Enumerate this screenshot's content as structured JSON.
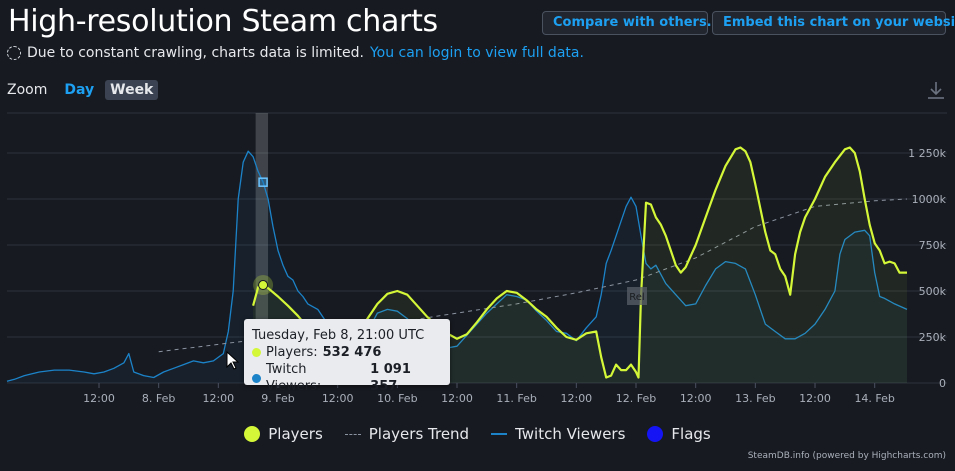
{
  "header": {
    "title": "High-resolution Steam charts",
    "compare_label": "Compare with others...",
    "embed_label": "Embed this chart on your website"
  },
  "notice": {
    "text": "Due to constant crawling, charts data is limited.",
    "link": "You can login to view full data."
  },
  "zoom": {
    "label": "Zoom",
    "options": [
      "Day",
      "Week"
    ],
    "selected": "Week"
  },
  "icons": {
    "download": "download-icon",
    "loading": "loading-spinner-icon"
  },
  "tooltip": {
    "date": "Tuesday, Feb 8, 21:00 UTC",
    "players_label": "Players:",
    "players_value": "532 476",
    "twitch_label": "Twitch Viewers:",
    "twitch_value": "1 091 357"
  },
  "legend": {
    "players": "Players",
    "trend": "Players Trend",
    "twitch": "Twitch Viewers",
    "flags": "Flags"
  },
  "flag_label": "Rel",
  "credits": "SteamDB.info (powered by Highcharts.com)",
  "colors": {
    "players": "#d4f738",
    "twitch": "#1c83c9",
    "trend": "#8b93a0",
    "flags": "#1414f5",
    "background": "#171a21"
  },
  "chart_data": {
    "type": "line",
    "x_unit": "hours from Feb 7 00:00 UTC",
    "x_range": [
      -6.5,
      174.7
    ],
    "ylim": [
      0,
      1250000
    ],
    "y_ticks": [
      {
        "value": 0,
        "label": "0"
      },
      {
        "value": 250000,
        "label": "250k"
      },
      {
        "value": 500000,
        "label": "500k"
      },
      {
        "value": 750000,
        "label": "750k"
      },
      {
        "value": 1000000,
        "label": "1000k"
      },
      {
        "value": 1250000,
        "label": "1 250k"
      }
    ],
    "x_ticks": [
      {
        "x": 12,
        "label": "12:00"
      },
      {
        "x": 24,
        "label": "8. Feb"
      },
      {
        "x": 36,
        "label": "12:00"
      },
      {
        "x": 48,
        "label": "9. Feb"
      },
      {
        "x": 60,
        "label": "12:00"
      },
      {
        "x": 72,
        "label": "10. Feb"
      },
      {
        "x": 84,
        "label": "12:00"
      },
      {
        "x": 96,
        "label": "11. Feb"
      },
      {
        "x": 108,
        "label": "12:00"
      },
      {
        "x": 120,
        "label": "12. Feb"
      },
      {
        "x": 132,
        "label": "12:00"
      },
      {
        "x": 144,
        "label": "13. Feb"
      },
      {
        "x": 156,
        "label": "12:00"
      },
      {
        "x": 168,
        "label": "14. Feb"
      }
    ],
    "highlight_range": [
      43.5,
      46
    ],
    "hover_x": 45,
    "flags": [
      {
        "x": 120,
        "label": "Rel"
      }
    ],
    "series": [
      {
        "name": "Players",
        "points": [
          [
            43,
            420000
          ],
          [
            44,
            520000
          ],
          [
            45,
            532476
          ],
          [
            46,
            515000
          ],
          [
            48,
            470000
          ],
          [
            50,
            420000
          ],
          [
            52,
            365000
          ],
          [
            54,
            300000
          ],
          [
            56,
            235000
          ],
          [
            58,
            185000
          ],
          [
            60,
            150000
          ],
          [
            61,
            160000
          ],
          [
            62,
            200000
          ],
          [
            64,
            270000
          ],
          [
            66,
            350000
          ],
          [
            68,
            430000
          ],
          [
            70,
            485000
          ],
          [
            72,
            500000
          ],
          [
            74,
            480000
          ],
          [
            76,
            420000
          ],
          [
            78,
            360000
          ],
          [
            80,
            310000
          ],
          [
            82,
            270000
          ],
          [
            84,
            240000
          ],
          [
            86,
            265000
          ],
          [
            88,
            330000
          ],
          [
            90,
            400000
          ],
          [
            92,
            460000
          ],
          [
            94,
            500000
          ],
          [
            96,
            490000
          ],
          [
            98,
            450000
          ],
          [
            100,
            400000
          ],
          [
            102,
            360000
          ],
          [
            104,
            300000
          ],
          [
            106,
            250000
          ],
          [
            108,
            235000
          ],
          [
            110,
            270000
          ],
          [
            112,
            280000
          ],
          [
            113,
            140000
          ],
          [
            114,
            30000
          ],
          [
            115,
            40000
          ],
          [
            116,
            100000
          ],
          [
            117,
            70000
          ],
          [
            118,
            70000
          ],
          [
            119,
            100000
          ],
          [
            120,
            60000
          ],
          [
            120.5,
            30000
          ],
          [
            121,
            470000
          ],
          [
            122,
            980000
          ],
          [
            123,
            970000
          ],
          [
            124,
            900000
          ],
          [
            125,
            860000
          ],
          [
            126,
            800000
          ],
          [
            127,
            720000
          ],
          [
            128,
            640000
          ],
          [
            129,
            600000
          ],
          [
            130,
            630000
          ],
          [
            131,
            690000
          ],
          [
            132,
            750000
          ],
          [
            134,
            900000
          ],
          [
            136,
            1050000
          ],
          [
            138,
            1180000
          ],
          [
            140,
            1270000
          ],
          [
            141,
            1280000
          ],
          [
            142,
            1260000
          ],
          [
            143,
            1200000
          ],
          [
            144,
            1080000
          ],
          [
            145,
            950000
          ],
          [
            146,
            820000
          ],
          [
            147,
            720000
          ],
          [
            148,
            700000
          ],
          [
            149,
            620000
          ],
          [
            150,
            580000
          ],
          [
            151,
            480000
          ],
          [
            152,
            700000
          ],
          [
            153,
            820000
          ],
          [
            154,
            900000
          ],
          [
            156,
            1000000
          ],
          [
            158,
            1120000
          ],
          [
            160,
            1200000
          ],
          [
            162,
            1270000
          ],
          [
            163,
            1280000
          ],
          [
            164,
            1250000
          ],
          [
            165,
            1150000
          ],
          [
            166,
            1000000
          ],
          [
            167,
            860000
          ],
          [
            168,
            760000
          ],
          [
            169,
            720000
          ],
          [
            170,
            650000
          ],
          [
            171,
            660000
          ],
          [
            172,
            650000
          ],
          [
            173,
            600000
          ],
          [
            174.5,
            600000
          ]
        ]
      },
      {
        "name": "Players Trend",
        "points": [
          [
            24,
            170000
          ],
          [
            36,
            210000
          ],
          [
            48,
            250000
          ],
          [
            60,
            290000
          ],
          [
            72,
            330000
          ],
          [
            84,
            380000
          ],
          [
            96,
            430000
          ],
          [
            108,
            490000
          ],
          [
            120,
            560000
          ],
          [
            132,
            680000
          ],
          [
            144,
            850000
          ],
          [
            156,
            960000
          ],
          [
            168,
            990000
          ],
          [
            174.5,
            1000000
          ]
        ]
      },
      {
        "name": "Twitch Viewers",
        "points": [
          [
            -6.5,
            10000
          ],
          [
            -5,
            20000
          ],
          [
            -3,
            40000
          ],
          [
            0,
            60000
          ],
          [
            3,
            70000
          ],
          [
            6,
            70000
          ],
          [
            9,
            60000
          ],
          [
            11,
            50000
          ],
          [
            13,
            60000
          ],
          [
            15,
            80000
          ],
          [
            17,
            110000
          ],
          [
            18,
            160000
          ],
          [
            19,
            60000
          ],
          [
            21,
            40000
          ],
          [
            23,
            30000
          ],
          [
            25,
            60000
          ],
          [
            27,
            80000
          ],
          [
            29,
            100000
          ],
          [
            31,
            120000
          ],
          [
            33,
            110000
          ],
          [
            35,
            120000
          ],
          [
            37,
            160000
          ],
          [
            38,
            280000
          ],
          [
            39,
            500000
          ],
          [
            40,
            1000000
          ],
          [
            41,
            1200000
          ],
          [
            42,
            1260000
          ],
          [
            43,
            1230000
          ],
          [
            44,
            1150000
          ],
          [
            45,
            1091357
          ],
          [
            46,
            1000000
          ],
          [
            47,
            850000
          ],
          [
            48,
            720000
          ],
          [
            49,
            640000
          ],
          [
            50,
            580000
          ],
          [
            51,
            560000
          ],
          [
            52,
            500000
          ],
          [
            53,
            470000
          ],
          [
            54,
            430000
          ],
          [
            56,
            400000
          ],
          [
            58,
            320000
          ],
          [
            60,
            230000
          ],
          [
            62,
            160000
          ],
          [
            64,
            200000
          ],
          [
            66,
            280000
          ],
          [
            68,
            380000
          ],
          [
            70,
            400000
          ],
          [
            72,
            390000
          ],
          [
            74,
            350000
          ],
          [
            76,
            290000
          ],
          [
            78,
            280000
          ],
          [
            80,
            230000
          ],
          [
            82,
            190000
          ],
          [
            84,
            200000
          ],
          [
            86,
            260000
          ],
          [
            88,
            320000
          ],
          [
            90,
            380000
          ],
          [
            92,
            430000
          ],
          [
            94,
            480000
          ],
          [
            96,
            470000
          ],
          [
            98,
            450000
          ],
          [
            100,
            390000
          ],
          [
            102,
            340000
          ],
          [
            104,
            280000
          ],
          [
            106,
            270000
          ],
          [
            108,
            230000
          ],
          [
            110,
            300000
          ],
          [
            112,
            360000
          ],
          [
            113,
            480000
          ],
          [
            114,
            650000
          ],
          [
            115,
            720000
          ],
          [
            116,
            800000
          ],
          [
            117,
            880000
          ],
          [
            118,
            960000
          ],
          [
            119,
            1010000
          ],
          [
            120,
            960000
          ],
          [
            121,
            800000
          ],
          [
            122,
            650000
          ],
          [
            123,
            620000
          ],
          [
            124,
            640000
          ],
          [
            125,
            590000
          ],
          [
            126,
            540000
          ],
          [
            128,
            480000
          ],
          [
            130,
            420000
          ],
          [
            132,
            430000
          ],
          [
            134,
            530000
          ],
          [
            136,
            620000
          ],
          [
            138,
            660000
          ],
          [
            140,
            650000
          ],
          [
            142,
            620000
          ],
          [
            144,
            480000
          ],
          [
            146,
            320000
          ],
          [
            148,
            280000
          ],
          [
            150,
            240000
          ],
          [
            152,
            240000
          ],
          [
            154,
            270000
          ],
          [
            156,
            320000
          ],
          [
            158,
            400000
          ],
          [
            160,
            500000
          ],
          [
            161,
            700000
          ],
          [
            162,
            780000
          ],
          [
            164,
            820000
          ],
          [
            166,
            830000
          ],
          [
            167,
            800000
          ],
          [
            168,
            600000
          ],
          [
            169,
            470000
          ],
          [
            170,
            460000
          ],
          [
            172,
            430000
          ],
          [
            174.5,
            400000
          ]
        ]
      }
    ]
  }
}
